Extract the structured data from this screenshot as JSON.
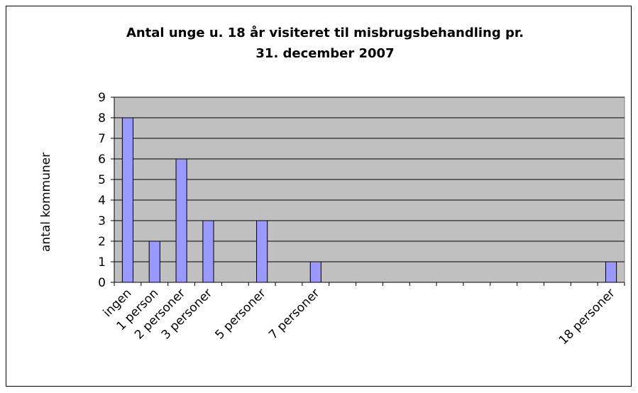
{
  "chart_data": {
    "type": "bar",
    "title": [
      "Antal unge u. 18 år visiteret til misbrugsbehandling pr.",
      "31. december 2007"
    ],
    "y_label": "antal kommuner",
    "categories": [
      "ingen",
      "1 person",
      "2 personer",
      "3 personer",
      null,
      "5 personer",
      null,
      "7 personer",
      null,
      null,
      null,
      null,
      null,
      null,
      null,
      null,
      null,
      null,
      "18 personer"
    ],
    "values": [
      8,
      2,
      6,
      3,
      0,
      3,
      0,
      1,
      0,
      0,
      0,
      0,
      0,
      0,
      0,
      0,
      0,
      0,
      1
    ],
    "color": "#9999ff",
    "ylim": [
      0,
      9
    ],
    "yticks": [
      0,
      1,
      2,
      3,
      4,
      5,
      6,
      7,
      8,
      9
    ],
    "grid": true
  }
}
